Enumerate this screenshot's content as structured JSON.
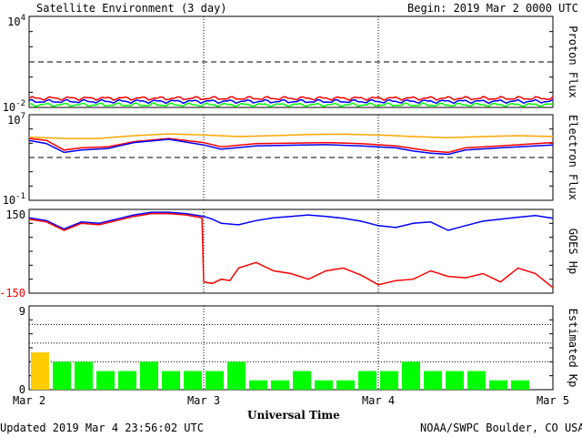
{
  "header": {
    "title": "Satellite Environment (3 day)",
    "begin": "Begin:  2019 Mar 2 0000 UTC"
  },
  "footer": {
    "updated": "Updated 2019 Mar  4 23:56:02 UTC",
    "credit": "NOAA/SWPC Boulder, CO USA",
    "xlabel": "Universal Time"
  },
  "chart_data": [
    {
      "type": "line",
      "name": "proton-flux",
      "ylabel": "Proton Flux",
      "yscale": "log",
      "ylim": [
        0.01,
        10000
      ],
      "ticks": [
        {
          "base": "10",
          "exp": "4"
        },
        {
          "base": "10",
          "exp": "-2"
        }
      ],
      "threshold": 10,
      "xlim": [
        0,
        3
      ],
      "series": [
        {
          "color": "#ff0000",
          "x": [
            0,
            3
          ],
          "y": [
            0.04,
            0.04
          ]
        },
        {
          "color": "#0000ff",
          "x": [
            0,
            3
          ],
          "y": [
            0.025,
            0.025
          ]
        },
        {
          "color": "#00ff00",
          "x": [
            0,
            3
          ],
          "y": [
            0.015,
            0.015
          ]
        }
      ]
    },
    {
      "type": "line",
      "name": "electron-flux",
      "ylabel": "Electron Flux",
      "yscale": "log",
      "ylim": [
        0.1,
        10000000
      ],
      "ticks": [
        {
          "base": "10",
          "exp": "7"
        },
        {
          "base": "10",
          "exp": "-1"
        }
      ],
      "threshold": 1000,
      "xlim": [
        0,
        3
      ],
      "series": [
        {
          "color": "#ffa500",
          "x": [
            0,
            0.2,
            0.4,
            0.6,
            0.8,
            1.0,
            1.2,
            1.4,
            1.6,
            1.8,
            2.0,
            2.2,
            2.4,
            2.6,
            2.8,
            3.0
          ],
          "y": [
            80000,
            60000,
            60000,
            110000,
            160000,
            130000,
            90000,
            110000,
            140000,
            150000,
            130000,
            90000,
            70000,
            90000,
            110000,
            90000
          ]
        },
        {
          "color": "#ff0000",
          "x": [
            0,
            0.1,
            0.2,
            0.3,
            0.45,
            0.6,
            0.8,
            1.0,
            1.1,
            1.3,
            1.5,
            1.7,
            1.9,
            2.1,
            2.2,
            2.3,
            2.4,
            2.5,
            2.7,
            2.9,
            3.0
          ],
          "y": [
            60000,
            40000,
            5000,
            8000,
            10000,
            30000,
            60000,
            25000,
            10000,
            20000,
            22000,
            25000,
            20000,
            12000,
            7000,
            4000,
            3000,
            8000,
            12000,
            20000,
            25000
          ]
        },
        {
          "color": "#0000ff",
          "x": [
            0,
            0.1,
            0.2,
            0.3,
            0.45,
            0.6,
            0.8,
            1.0,
            1.1,
            1.3,
            1.5,
            1.7,
            1.9,
            2.1,
            2.2,
            2.3,
            2.4,
            2.5,
            2.7,
            2.9,
            3.0
          ],
          "y": [
            40000,
            20000,
            3000,
            5000,
            7000,
            25000,
            50000,
            15000,
            6000,
            12000,
            14000,
            16000,
            12000,
            8000,
            4000,
            2500,
            2000,
            5000,
            8000,
            12000,
            15000
          ]
        }
      ]
    },
    {
      "type": "line",
      "name": "goes-hp",
      "ylabel": "GOES Hp",
      "yscale": "linear",
      "ylim": [
        -150,
        150
      ],
      "ticks": [
        {
          "base": "150",
          "exp": ""
        },
        {
          "base": "-150",
          "exp": "",
          "color": "#ff0000"
        }
      ],
      "xlim": [
        0,
        3
      ],
      "series": [
        {
          "color": "#0000ff",
          "x": [
            0,
            0.1,
            0.2,
            0.3,
            0.4,
            0.5,
            0.6,
            0.7,
            0.8,
            0.9,
            1.0,
            1.05,
            1.1,
            1.2,
            1.3,
            1.4,
            1.5,
            1.6,
            1.7,
            1.8,
            1.9,
            2.0,
            2.1,
            2.2,
            2.3,
            2.4,
            2.5,
            2.6,
            2.7,
            2.8,
            2.9,
            3.0
          ],
          "y": [
            120,
            110,
            80,
            105,
            100,
            115,
            130,
            140,
            140,
            135,
            125,
            115,
            100,
            95,
            110,
            120,
            125,
            130,
            125,
            118,
            108,
            92,
            85,
            100,
            105,
            75,
            92,
            108,
            115,
            122,
            128,
            118
          ]
        },
        {
          "color": "#ff0000",
          "x": [
            0,
            0.1,
            0.2,
            0.3,
            0.4,
            0.5,
            0.6,
            0.7,
            0.8,
            0.9,
            0.99,
            1.0,
            1.05,
            1.1,
            1.15,
            1.2,
            1.25,
            1.3,
            1.4,
            1.5,
            1.6,
            1.7,
            1.8,
            1.9,
            2.0,
            2.1,
            2.2,
            2.3,
            2.4,
            2.5,
            2.6,
            2.7,
            2.8,
            2.9,
            3.0
          ],
          "y": [
            115,
            105,
            75,
            100,
            95,
            110,
            125,
            135,
            135,
            130,
            120,
            -110,
            -115,
            -100,
            -105,
            -60,
            -50,
            -40,
            -70,
            -80,
            -100,
            -70,
            -60,
            -85,
            -120,
            -105,
            -100,
            -70,
            -90,
            -95,
            -80,
            -110,
            -60,
            -80,
            -130
          ]
        }
      ]
    },
    {
      "type": "bar",
      "name": "estimated-kp",
      "ylabel": "Estimated Kp",
      "ylim": [
        0,
        9
      ],
      "ticks": [
        {
          "base": "9",
          "exp": ""
        },
        {
          "base": "0",
          "exp": ""
        }
      ],
      "x_ticks": [
        "Mar 2",
        "Mar 3",
        "Mar 4",
        "Mar 5"
      ],
      "values": [
        4,
        3,
        3,
        2,
        2,
        3,
        2,
        2,
        2,
        3,
        1,
        1,
        2,
        1,
        1,
        2,
        2,
        3,
        2,
        2,
        2,
        1,
        1,
        0
      ],
      "colors": {
        "quiet": "#00ff00",
        "active": "#ffcc00"
      }
    }
  ]
}
